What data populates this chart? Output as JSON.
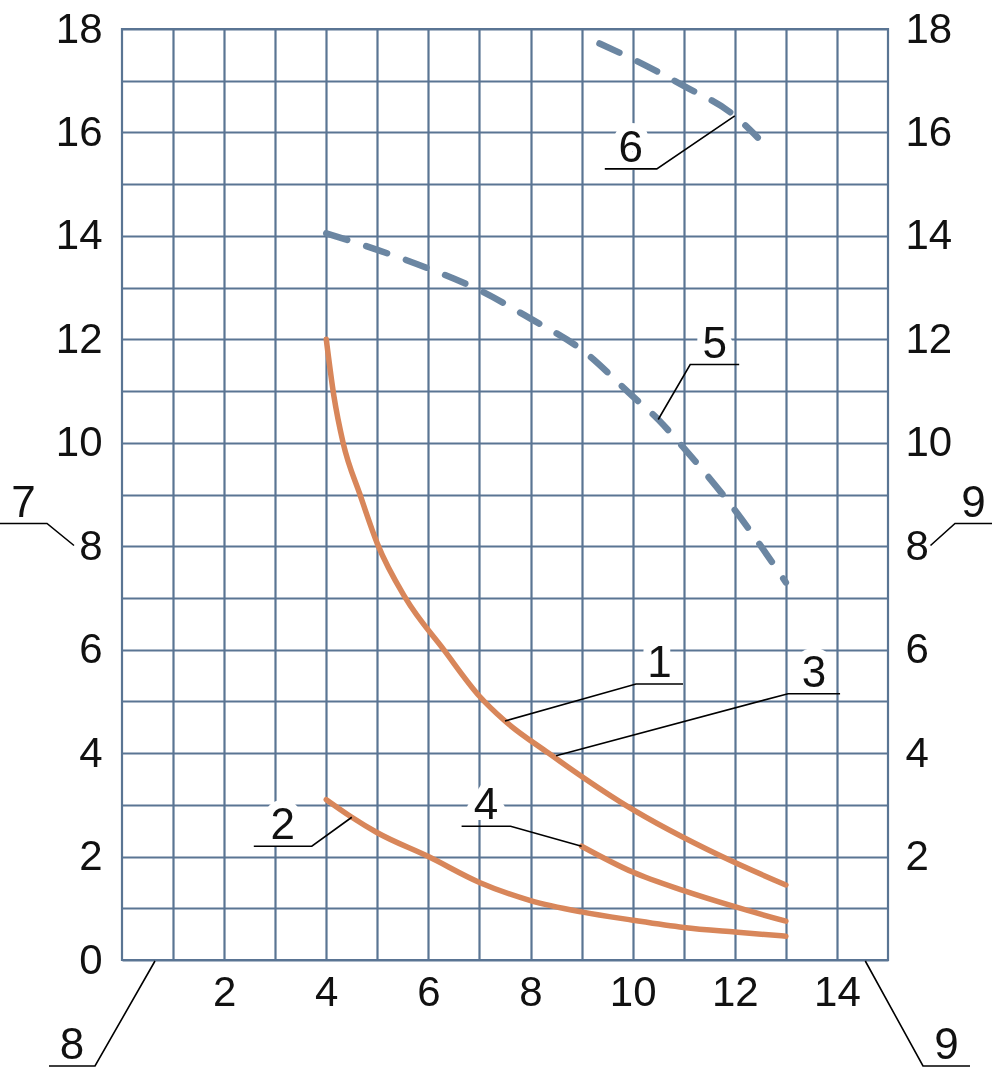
{
  "chart_data": {
    "type": "line",
    "xlim": [
      0,
      15
    ],
    "xticks": [
      {
        "value": 1,
        "label": null
      },
      2,
      {
        "value": 3,
        "label": null
      },
      4,
      {
        "value": 5,
        "label": null
      },
      6,
      {
        "value": 7,
        "label": null
      },
      8,
      {
        "value": 9,
        "label": null
      },
      10,
      {
        "value": 11,
        "label": null
      },
      12,
      {
        "value": 13,
        "label": null
      },
      14
    ],
    "ylim": [
      0,
      18
    ],
    "yticks": [
      0,
      {
        "value": 1,
        "label": null
      },
      2,
      {
        "value": 3,
        "label": null
      },
      4,
      {
        "value": 5,
        "label": null
      },
      6,
      {
        "value": 7,
        "label": null
      },
      8,
      {
        "value": 9,
        "label": null
      },
      10,
      {
        "value": 11,
        "label": null
      },
      12,
      {
        "value": 13,
        "label": null
      },
      14,
      {
        "value": 15,
        "label": null
      },
      16,
      {
        "value": 17,
        "label": null
      },
      18
    ],
    "y2lim": [
      0,
      18
    ],
    "y2ticks": [
      2,
      4,
      6,
      8,
      10,
      12,
      14,
      16,
      18
    ],
    "grid": true,
    "series": [
      {
        "name": "1",
        "color": "#d8865a",
        "line_style": "solid",
        "x": [
          4,
          4.15,
          4.33,
          4.66,
          5,
          5.55,
          6.3,
          7,
          7.5,
          8.35,
          9.85,
          11.75,
          13
        ],
        "values": [
          12,
          10.9,
          10,
          9,
          8.05,
          7,
          6,
          5.1,
          4.62,
          4,
          3,
          2,
          1.45
        ]
      },
      {
        "name": "2",
        "color": "#d8865a",
        "line_style": "solid",
        "x": [
          4,
          4.5,
          5,
          6,
          7,
          8,
          9,
          10,
          11,
          12,
          13
        ],
        "values": [
          3.1,
          2.76,
          2.46,
          2.0,
          1.5,
          1.15,
          0.93,
          0.77,
          0.63,
          0.54,
          0.46
        ]
      },
      {
        "name": "4",
        "color": "#d8865a",
        "line_style": "solid",
        "x": [
          9,
          10,
          11,
          12,
          13
        ],
        "values": [
          2.2,
          1.7,
          1.34,
          1.03,
          0.75
        ]
      },
      {
        "name": "5",
        "color": "#6b86a2",
        "line_style": "dashed",
        "x": [
          4,
          5,
          6,
          7,
          8,
          9,
          10,
          10.5,
          11,
          12,
          13
        ],
        "values": [
          14.05,
          13.73,
          13.37,
          12.95,
          12.4,
          11.8,
          10.9,
          10.45,
          9.9,
          8.7,
          7.3
        ]
      },
      {
        "name": "6",
        "color": "#6b86a2",
        "line_style": "dashed",
        "x": [
          9.35,
          10,
          11,
          12,
          12.45
        ],
        "values": [
          17.72,
          17.42,
          16.9,
          16.32,
          15.9
        ]
      }
    ],
    "annotations": [
      {
        "text": "3",
        "x": 8.5,
        "y": 3.95
      },
      "7",
      "8",
      "9",
      "9"
    ]
  }
}
